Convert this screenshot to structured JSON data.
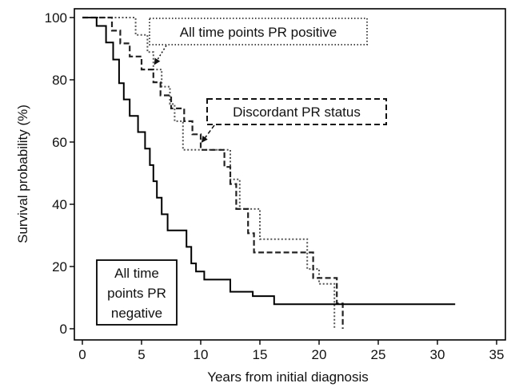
{
  "chart_data": {
    "type": "line",
    "title": "",
    "xlabel": "Years from initial diagnosis",
    "ylabel": "Survival probability (%)",
    "xlim": [
      0,
      35
    ],
    "ylim": [
      0,
      100
    ],
    "xticks": [
      0,
      5,
      10,
      15,
      20,
      25,
      30,
      35
    ],
    "yticks": [
      0,
      20,
      40,
      60,
      80,
      100
    ],
    "grid": false,
    "legend": "none",
    "series": [
      {
        "style": "dotted",
        "color": "#555555",
        "points": [
          [
            0,
            100
          ],
          [
            4.5,
            100
          ],
          [
            4.5,
            94.4
          ],
          [
            5.5,
            94.4
          ],
          [
            5.5,
            88.9
          ],
          [
            6,
            88.9
          ],
          [
            6,
            83.3
          ],
          [
            6.7,
            83.3
          ],
          [
            6.7,
            77.8
          ],
          [
            7.4,
            77.8
          ],
          [
            7.4,
            72.2
          ],
          [
            7.8,
            72.2
          ],
          [
            7.8,
            66.7
          ],
          [
            8.5,
            66.7
          ],
          [
            8.5,
            57.5
          ],
          [
            10,
            57.5
          ],
          [
            10,
            57.5
          ],
          [
            12.5,
            57.5
          ],
          [
            12.5,
            48
          ],
          [
            13.3,
            48
          ],
          [
            13.3,
            38.5
          ],
          [
            15,
            38.5
          ],
          [
            15,
            28.8
          ],
          [
            19,
            28.8
          ],
          [
            19,
            19.2
          ],
          [
            20,
            19.2
          ],
          [
            20,
            14.4
          ],
          [
            21.3,
            14.4
          ],
          [
            21.3,
            0
          ]
        ]
      },
      {
        "style": "dashed",
        "color": "#222222",
        "points": [
          [
            0,
            100
          ],
          [
            2.5,
            100
          ],
          [
            2.5,
            95.8
          ],
          [
            3.2,
            95.8
          ],
          [
            3.2,
            91.7
          ],
          [
            4,
            91.7
          ],
          [
            4,
            87.5
          ],
          [
            5,
            87.5
          ],
          [
            5,
            83.3
          ],
          [
            6,
            83.3
          ],
          [
            6,
            79.2
          ],
          [
            6.6,
            79.2
          ],
          [
            6.6,
            75
          ],
          [
            7.5,
            75
          ],
          [
            7.5,
            70.8
          ],
          [
            8.6,
            70.8
          ],
          [
            8.6,
            66.7
          ],
          [
            9.3,
            66.7
          ],
          [
            9.3,
            62.5
          ],
          [
            10,
            62.5
          ],
          [
            10,
            57.5
          ],
          [
            12,
            57.5
          ],
          [
            12,
            52
          ],
          [
            12.5,
            52
          ],
          [
            12.5,
            46.5
          ],
          [
            13,
            46.5
          ],
          [
            13,
            38.5
          ],
          [
            14,
            38.5
          ],
          [
            14,
            30.7
          ],
          [
            14.5,
            30.7
          ],
          [
            14.5,
            24.5
          ],
          [
            19.5,
            24.5
          ],
          [
            19.5,
            16.3
          ],
          [
            21.5,
            16.3
          ],
          [
            21.5,
            8.1
          ],
          [
            22,
            8.1
          ],
          [
            22,
            0
          ]
        ]
      },
      {
        "style": "solid",
        "color": "#000000",
        "points": [
          [
            0,
            100
          ],
          [
            1.2,
            100
          ],
          [
            1.2,
            97.3
          ],
          [
            2,
            97.3
          ],
          [
            2,
            92
          ],
          [
            2.6,
            92
          ],
          [
            2.6,
            86.5
          ],
          [
            3.1,
            86.5
          ],
          [
            3.1,
            78.9
          ],
          [
            3.5,
            78.9
          ],
          [
            3.5,
            73.7
          ],
          [
            4,
            73.7
          ],
          [
            4,
            68.4
          ],
          [
            4.7,
            68.4
          ],
          [
            4.7,
            63.2
          ],
          [
            5.3,
            63.2
          ],
          [
            5.3,
            57.9
          ],
          [
            5.7,
            57.9
          ],
          [
            5.7,
            52.6
          ],
          [
            6,
            52.6
          ],
          [
            6,
            47.4
          ],
          [
            6.3,
            47.4
          ],
          [
            6.3,
            42.1
          ],
          [
            6.7,
            42.1
          ],
          [
            6.7,
            36.8
          ],
          [
            7.2,
            36.8
          ],
          [
            7.2,
            31.6
          ],
          [
            8.8,
            31.6
          ],
          [
            8.8,
            26.3
          ],
          [
            9.2,
            26.3
          ],
          [
            9.2,
            21
          ],
          [
            9.6,
            21
          ],
          [
            9.6,
            18.4
          ],
          [
            10.3,
            18.4
          ],
          [
            10.3,
            15.8
          ],
          [
            12.5,
            15.8
          ],
          [
            12.5,
            11.9
          ],
          [
            14.4,
            11.9
          ],
          [
            14.4,
            10.5
          ],
          [
            16.2,
            10.5
          ],
          [
            16.2,
            7.9
          ],
          [
            31.5,
            7.9
          ]
        ]
      }
    ],
    "annotations": [
      {
        "text": "All time points PR positive",
        "style": "dotted",
        "arrow_to": [
          6.1,
          85
        ]
      },
      {
        "text": "Discordant PR status",
        "style": "dashed",
        "arrow_to": [
          10.1,
          60
        ]
      },
      {
        "text_lines": [
          "All time",
          "points PR",
          "negative"
        ],
        "style": "solid"
      }
    ]
  }
}
